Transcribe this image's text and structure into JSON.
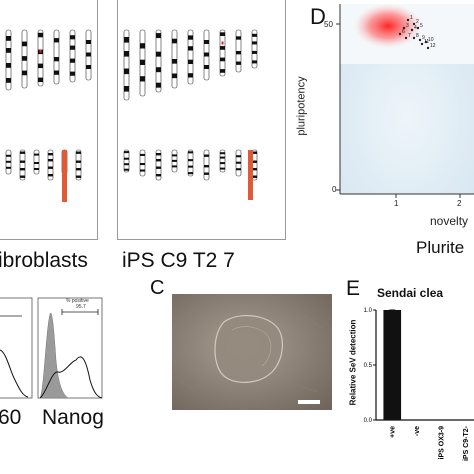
{
  "karyotype": {
    "left_label": "ibroblasts",
    "right_label": "iPS C9 T2 7"
  },
  "panel_d": {
    "letter": "D",
    "y_tick": "50",
    "y_label": "pluripotency",
    "y_tick_zero": "0",
    "x_tick_1": "1",
    "x_tick_2": "2",
    "x_label": "novelty",
    "title_fragment": "Plurite",
    "point_labels": [
      "1",
      "2",
      "3",
      "4",
      "5",
      "6",
      "7",
      "8",
      "9",
      "10",
      "11",
      "12"
    ],
    "colors": {
      "heat": "#ff2a2a",
      "background": "#dbe9f3"
    }
  },
  "flow": {
    "left_label": "60",
    "right_label": "Nanog",
    "gate_text": "% positive",
    "gate_value": "95.7"
  },
  "panel_c": {
    "letter": "C"
  },
  "panel_e": {
    "letter": "E",
    "title": "Sendai clea",
    "y_label": "Relative SeV detection",
    "y_ticks": [
      "1.0",
      "0.5",
      "0.0"
    ],
    "chart_data": {
      "type": "bar",
      "categories": [
        "+ve",
        "-ve",
        "iPS OX3-9",
        "iPS C9-T2-"
      ],
      "values": [
        1.0,
        0.0,
        0.0,
        0.0
      ],
      "ylim": [
        0,
        1.0
      ],
      "title": "Sendai clea",
      "ylabel": "Relative SeV detection",
      "colors": {
        "bar": "#111111"
      }
    }
  }
}
